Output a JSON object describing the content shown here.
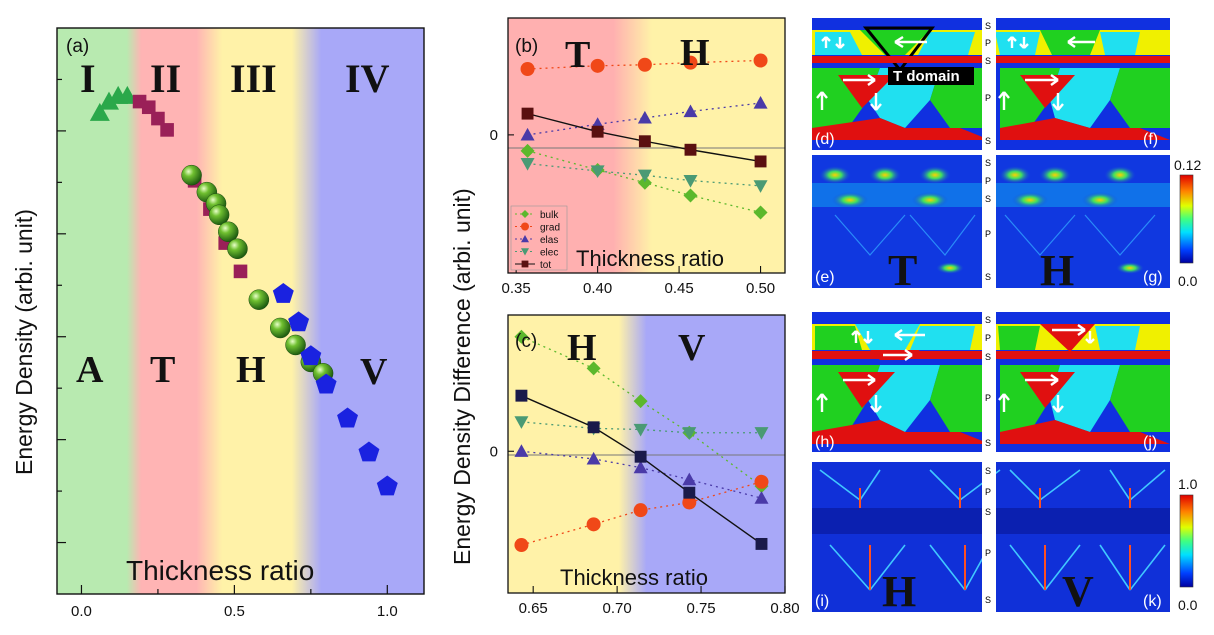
{
  "panel_a": {
    "label": "(a)",
    "regions": [
      "I",
      "II",
      "III",
      "IV"
    ],
    "phases": [
      "A",
      "T",
      "H",
      "V"
    ]
  },
  "panel_b": {
    "label": "(b)",
    "phases": [
      "T",
      "H"
    ]
  },
  "panel_c": {
    "label": "(c)",
    "phases": [
      "H",
      "V"
    ]
  },
  "shared_ylabel": "Energy Density Difference (arbi. unit)",
  "maps": {
    "labels": [
      "(d)",
      "(e)",
      "(f)",
      "(g)",
      "(h)",
      "(i)",
      "(j)",
      "(k)"
    ],
    "domain_text": "T  domain",
    "strip_letters": {
      "s": "S",
      "p": "P"
    },
    "big_letters": {
      "e": "T",
      "g": "H",
      "i": "H",
      "k": "V"
    },
    "colorbar1": {
      "max": "0.12",
      "min": "0.0"
    },
    "colorbar2": {
      "max": "1.0",
      "min": "0.0"
    },
    "colors": {
      "blue": "#1030e0",
      "red": "#e01010",
      "green": "#20d020",
      "cyan": "#20e0f0",
      "yellow": "#f0f000"
    }
  },
  "chart_data": [
    {
      "id": "a",
      "type": "scatter",
      "title": "",
      "xlabel": "Thickness ratio",
      "ylabel": "Energy Density (arbi. unit)",
      "xlim": [
        -0.08,
        1.12
      ],
      "ylim": [
        0,
        1
      ],
      "xticks": [
        0.0,
        0.5,
        1.0
      ],
      "xtick_labels": [
        "0.0",
        "0.5",
        "1.0"
      ],
      "phase_bounds": [
        0.16,
        0.42,
        0.72
      ],
      "series": [
        {
          "name": "A",
          "marker": "triangle",
          "color": "#2aa84a",
          "x": [
            0.06,
            0.09,
            0.12,
            0.15
          ],
          "y": [
            0.85,
            0.87,
            0.88,
            0.88
          ]
        },
        {
          "name": "T",
          "marker": "square",
          "color": "#9a2058",
          "x": [
            0.19,
            0.22,
            0.25,
            0.28,
            0.37,
            0.42,
            0.47,
            0.52
          ],
          "y": [
            0.87,
            0.86,
            0.84,
            0.82,
            0.73,
            0.68,
            0.62,
            0.57
          ]
        },
        {
          "name": "H",
          "marker": "sphere",
          "color": "#40a820",
          "x": [
            0.36,
            0.41,
            0.44,
            0.45,
            0.48,
            0.51,
            0.58,
            0.65,
            0.7,
            0.75,
            0.79
          ],
          "y": [
            0.74,
            0.71,
            0.69,
            0.67,
            0.64,
            0.61,
            0.52,
            0.47,
            0.44,
            0.41,
            0.39
          ]
        },
        {
          "name": "V",
          "marker": "pentagon",
          "color": "#1a22e0",
          "x": [
            0.66,
            0.71,
            0.75,
            0.8,
            0.87,
            0.94,
            1.0
          ],
          "y": [
            0.53,
            0.48,
            0.42,
            0.37,
            0.31,
            0.25,
            0.19
          ]
        }
      ]
    },
    {
      "id": "b",
      "type": "line",
      "xlabel": "Thickness ratio",
      "xlim": [
        0.345,
        0.515
      ],
      "ylim": [
        -1.3,
        1.1
      ],
      "xticks": [
        0.35,
        0.4,
        0.45,
        0.5
      ],
      "xtick_labels": [
        "0.35",
        "0.40",
        "0.45",
        "0.50"
      ],
      "yticks": [
        0
      ],
      "ytick_labels": [
        "0"
      ],
      "phase_bound": 0.42,
      "x": [
        0.357,
        0.4,
        0.429,
        0.457,
        0.5
      ],
      "series": [
        {
          "name": "bulk",
          "marker": "diamond",
          "color": "#5cb82c",
          "values": [
            -0.15,
            -0.33,
            -0.45,
            -0.57,
            -0.73
          ]
        },
        {
          "name": "grad",
          "marker": "circle",
          "color": "#f04818",
          "values": [
            0.62,
            0.65,
            0.66,
            0.68,
            0.7
          ]
        },
        {
          "name": "elas",
          "marker": "triangle",
          "color": "#4a3aa8",
          "values": [
            0.0,
            0.1,
            0.16,
            0.22,
            0.3
          ]
        },
        {
          "name": "elec",
          "marker": "triangle-down",
          "color": "#4a9a74",
          "values": [
            -0.27,
            -0.34,
            -0.38,
            -0.43,
            -0.48
          ]
        },
        {
          "name": "tot",
          "marker": "square",
          "color": "#5a1010",
          "values": [
            0.2,
            0.03,
            -0.06,
            -0.14,
            -0.25
          ]
        }
      ]
    },
    {
      "id": "c",
      "type": "line",
      "xlabel": "Thickness ratio",
      "xlim": [
        0.635,
        0.8
      ],
      "ylim": [
        -1.3,
        1.25
      ],
      "xticks": [
        0.65,
        0.7,
        0.75,
        0.8
      ],
      "xtick_labels": [
        "0.65",
        "0.70",
        "0.75",
        "0.80"
      ],
      "yticks": [
        0
      ],
      "ytick_labels": [
        "0"
      ],
      "phase_bound": 0.712,
      "x": [
        0.643,
        0.686,
        0.714,
        0.743,
        0.786
      ],
      "series": [
        {
          "name": "bulk",
          "marker": "diamond",
          "color": "#5cb82c",
          "values": [
            1.05,
            0.76,
            0.46,
            0.17,
            -0.32
          ]
        },
        {
          "name": "grad",
          "marker": "circle",
          "color": "#f04818",
          "values": [
            -0.86,
            -0.67,
            -0.54,
            -0.47,
            -0.28
          ]
        },
        {
          "name": "elas",
          "marker": "triangle",
          "color": "#4a3aa8",
          "values": [
            0.0,
            -0.07,
            -0.15,
            -0.26,
            -0.43
          ]
        },
        {
          "name": "elec",
          "marker": "triangle-down",
          "color": "#4a9a74",
          "values": [
            0.27,
            0.21,
            0.2,
            0.17,
            0.17
          ]
        },
        {
          "name": "tot",
          "marker": "square",
          "color": "#1a1a4a",
          "values": [
            0.51,
            0.22,
            -0.05,
            -0.38,
            -0.85
          ]
        }
      ]
    }
  ]
}
